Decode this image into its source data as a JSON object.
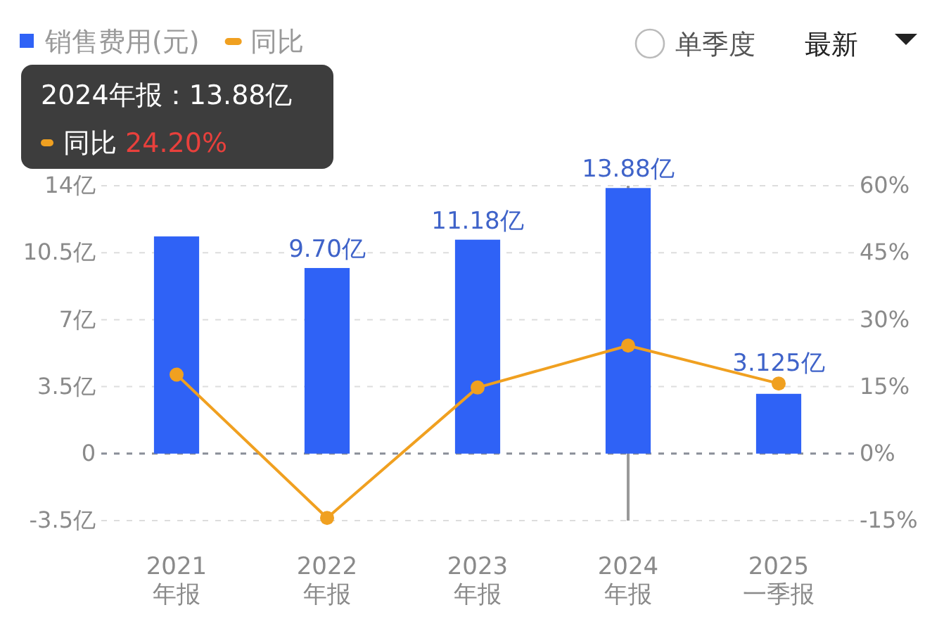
{
  "chart_data": {
    "type": "bar",
    "categories": [
      "2021\n年报",
      "2022\n年报",
      "2023\n年报",
      "2024\n年报",
      "2025\n一季报"
    ],
    "series": [
      {
        "name": "销售费用(元)",
        "color": "#2f62f6",
        "values": [
          11.35,
          9.7,
          11.18,
          13.88,
          3.125
        ],
        "value_labels": [
          null,
          "9.70亿",
          "11.18亿",
          "13.88亿",
          "3.125亿"
        ]
      },
      {
        "name": "同比",
        "type": "line",
        "axis": "y2",
        "color": "#f0a020",
        "values": [
          17.7,
          -14.4,
          14.8,
          24.2,
          15.7
        ]
      }
    ],
    "ylim": [
      -3.5,
      14
    ],
    "yticks": [
      {
        "value": -3.5,
        "label": "-3.5亿"
      },
      {
        "value": 0,
        "label": "0"
      },
      {
        "value": 3.5,
        "label": "3.5亿"
      },
      {
        "value": 7,
        "label": "7亿"
      },
      {
        "value": 10.5,
        "label": "10.5亿"
      },
      {
        "value": 14,
        "label": "14亿"
      }
    ],
    "y2lim": [
      -15,
      60
    ],
    "y2ticks": [
      {
        "value": -15,
        "label": "-15%"
      },
      {
        "value": 0,
        "label": "0%"
      },
      {
        "value": 15,
        "label": "15%"
      },
      {
        "value": 30,
        "label": "30%"
      },
      {
        "value": 45,
        "label": "45%"
      },
      {
        "value": 60,
        "label": "60%"
      }
    ],
    "grid": "y",
    "legend": "top left",
    "marker": "circle",
    "ref_lines": [
      {
        "axis": "x",
        "value": "2024\n年报",
        "color": "#999999"
      },
      {
        "axis": "y",
        "value": 0,
        "color": "#8a8f99",
        "line_style": "dashed"
      }
    ],
    "annotations": [
      "2024年报：13.88亿",
      "同比 24.20%",
      "单季度",
      "最新"
    ]
  }
}
